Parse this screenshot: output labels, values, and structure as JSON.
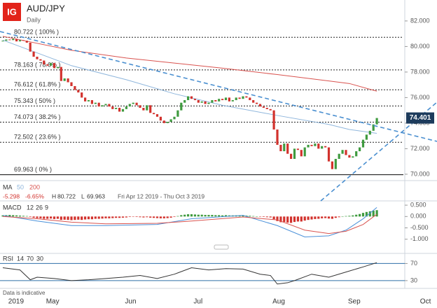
{
  "header": {
    "logo": "IG",
    "symbol": "AUD/JPY",
    "interval": "Daily"
  },
  "chart_data": {
    "type": "candlestick",
    "categories": [
      null,
      null,
      "2019",
      null,
      null,
      null,
      null,
      null,
      null,
      null,
      null,
      null,
      null,
      "May",
      null,
      null,
      null,
      null,
      null,
      null,
      null,
      null,
      null,
      null,
      null,
      null,
      null,
      null,
      null,
      null,
      null,
      null,
      null,
      null,
      null,
      null,
      "Jun",
      null,
      null,
      null,
      null,
      null,
      null,
      null,
      null,
      null,
      null,
      null,
      null,
      null,
      null,
      null,
      null,
      null,
      null,
      null,
      "Jul",
      null,
      null,
      null,
      null,
      null,
      null,
      null,
      null,
      null,
      null,
      null,
      null,
      null,
      null,
      null,
      null,
      null,
      null,
      null,
      null,
      null,
      null,
      "Aug",
      null,
      null,
      null,
      null,
      null,
      null,
      null,
      null,
      null,
      null,
      null,
      null,
      null,
      null,
      null,
      null,
      null,
      null,
      null,
      null,
      null,
      "Sep",
      null,
      null,
      null,
      null,
      null,
      null,
      null,
      null,
      null,
      null,
      null,
      null,
      null,
      null,
      null,
      null,
      null,
      null,
      null,
      null,
      "Oct"
    ],
    "closes": [
      80.45,
      80.55,
      80.5,
      80.6,
      80.4,
      80.5,
      80.45,
      80.3,
      79.6,
      79.2,
      79.0,
      78.9,
      78.6,
      78.5,
      78.7,
      78.3,
      78.4,
      77.3,
      77.5,
      77.2,
      76.9,
      76.6,
      76.4,
      76.0,
      75.7,
      75.8,
      75.5,
      75.6,
      75.3,
      75.4,
      75.5,
      75.3,
      75.1,
      75.2,
      74.9,
      75.1,
      75.3,
      75.5,
      75.6,
      75.4,
      75.2,
      75.0,
      75.4,
      74.8,
      74.7,
      74.5,
      74.2,
      74.0,
      74.1,
      74.3,
      74.5,
      75.0,
      75.6,
      75.8,
      76.1,
      75.9,
      75.8,
      75.6,
      75.7,
      75.5,
      75.6,
      75.8,
      75.7,
      75.9,
      75.8,
      76.0,
      75.7,
      75.8,
      76.0,
      75.9,
      76.1,
      76.0,
      75.8,
      75.6,
      75.5,
      75.3,
      75.2,
      75.1,
      75.0,
      73.5,
      72.3,
      71.8,
      72.4,
      71.6,
      71.2,
      72.0,
      71.9,
      71.4,
      72.1,
      72.3,
      72.2,
      72.4,
      72.0,
      72.2,
      72.1,
      71.0,
      70.4,
      71.2,
      71.6,
      71.9,
      71.5,
      71.3,
      71.4,
      71.8,
      72.1,
      72.7,
      73.1,
      73.4,
      73.9,
      74.4,
      null,
      null,
      null,
      null,
      null,
      null,
      null,
      null,
      null,
      null,
      null,
      null,
      null
    ],
    "up_color": "#3f9b3f",
    "down_color": "#d2322d",
    "ylim": [
      69.5,
      83.64
    ],
    "yticks": [
      {
        "value": 70,
        "label": "70.000"
      },
      {
        "value": 72,
        "label": "72.000"
      },
      {
        "value": 74,
        "label": "74.000"
      },
      {
        "value": 76,
        "label": "76.000"
      },
      {
        "value": 78,
        "label": "78.000"
      },
      {
        "value": 80,
        "label": "80.000"
      },
      {
        "value": 82,
        "label": "82.000"
      }
    ],
    "last_price": 74.401,
    "fib_levels": [
      {
        "value": 80.722,
        "label": "80.722 ( 100% )"
      },
      {
        "value": 78.163,
        "label": "78.163 ( 78.6% )"
      },
      {
        "value": 76.612,
        "label": "76.612 ( 61.8% )"
      },
      {
        "value": 75.343,
        "label": "75.343 ( 50% )"
      },
      {
        "value": 74.073,
        "label": "74.073 ( 38.2% )"
      },
      {
        "value": 72.502,
        "label": "72.502 ( 23.6% )"
      },
      {
        "value": 69.963,
        "label": "69.963 ( 0% )"
      }
    ],
    "ma": {
      "label": "MA",
      "series": [
        {
          "name": "50",
          "color": "#8fb6dc",
          "x": [
            0,
            20,
            36,
            50,
            64,
            80,
            95,
            101,
            109
          ],
          "values": [
            80.5,
            78.5,
            77.4,
            76.3,
            75.4,
            74.6,
            73.9,
            73.5,
            73.2
          ]
        },
        {
          "name": "200",
          "color": "#d9534f",
          "x": [
            0,
            20,
            36,
            50,
            64,
            80,
            95,
            101,
            109
          ],
          "values": [
            80.8,
            79.7,
            79.1,
            78.7,
            78.3,
            77.8,
            77.3,
            77.1,
            76.5
          ]
        }
      ]
    },
    "info": {
      "change": "-5.298",
      "change_pct": "-6.65%",
      "high_label": "H",
      "high": "80.722",
      "low_label": "L",
      "low": "69.963",
      "range": "Fri Apr 12 2019 - Thu Oct 3 2019"
    },
    "macd": {
      "label": "MACD",
      "params": [
        12,
        26,
        9
      ],
      "histogram": [
        0.05,
        0.06,
        0.07,
        0.06,
        0.05,
        0.04,
        0.03,
        0.02,
        -0.02,
        -0.05,
        -0.07,
        -0.08,
        -0.1,
        -0.1,
        -0.09,
        -0.11,
        -0.1,
        -0.15,
        -0.14,
        -0.15,
        -0.16,
        -0.15,
        -0.14,
        -0.15,
        -0.13,
        -0.12,
        -0.12,
        -0.1,
        -0.1,
        -0.09,
        -0.08,
        -0.08,
        -0.07,
        -0.06,
        -0.06,
        -0.05,
        -0.04,
        -0.02,
        -0.01,
        -0.02,
        -0.03,
        -0.04,
        -0.03,
        -0.05,
        -0.06,
        -0.07,
        -0.08,
        -0.08,
        -0.07,
        -0.05,
        -0.02,
        0.02,
        0.06,
        0.08,
        0.1,
        0.1,
        0.09,
        0.08,
        0.08,
        0.07,
        0.07,
        0.07,
        0.06,
        0.06,
        0.05,
        0.06,
        0.05,
        0.05,
        0.05,
        0.04,
        0.05,
        0.04,
        0.03,
        0.02,
        0.01,
        -0.01,
        -0.02,
        -0.03,
        -0.04,
        -0.12,
        -0.2,
        -0.25,
        -0.24,
        -0.27,
        -0.28,
        -0.24,
        -0.22,
        -0.22,
        -0.18,
        -0.15,
        -0.13,
        -0.11,
        -0.1,
        -0.08,
        -0.07,
        -0.09,
        -0.1,
        -0.06,
        -0.03,
        0.0,
        0.02,
        0.03,
        0.05,
        0.08,
        0.11,
        0.16,
        0.2,
        0.23,
        0.26,
        0.28,
        null,
        null,
        null,
        null,
        null,
        null,
        null,
        null,
        null,
        null,
        null,
        null,
        null
      ],
      "up_color": "#3f9b3f",
      "down_color": "#d2322d",
      "lines": [
        {
          "color": "#4a90d9",
          "x": [
            0,
            10,
            20,
            30,
            45,
            55,
            70,
            80,
            88,
            95,
            100,
            105,
            109
          ],
          "values": [
            0.05,
            -0.2,
            -0.4,
            -0.4,
            -0.35,
            -0.1,
            0.05,
            -0.4,
            -0.9,
            -0.85,
            -0.6,
            -0.1,
            0.4
          ]
        },
        {
          "color": "#d9534f",
          "x": [
            0,
            10,
            20,
            30,
            45,
            55,
            70,
            80,
            88,
            95,
            100,
            105,
            109
          ],
          "values": [
            0.0,
            -0.1,
            -0.25,
            -0.32,
            -0.3,
            -0.2,
            -0.02,
            -0.15,
            -0.6,
            -0.75,
            -0.65,
            -0.35,
            0.1
          ]
        }
      ],
      "ylim": [
        -1.5625,
        0.6875
      ],
      "yticks": [
        {
          "value": 0.5,
          "label": "0.500"
        },
        {
          "value": 0,
          "label": "0.000"
        },
        {
          "value": -0.5,
          "label": "-0.500"
        },
        {
          "value": -1,
          "label": "-1.000"
        }
      ]
    },
    "rsi": {
      "label": "RSI",
      "params": [
        14,
        70,
        30
      ],
      "color": "#333333",
      "level_color": "#2f6fa8",
      "x": [
        0,
        5,
        8,
        10,
        15,
        20,
        25,
        30,
        35,
        40,
        45,
        50,
        55,
        60,
        65,
        70,
        75,
        78,
        80,
        83,
        85,
        90,
        95,
        100,
        105,
        109
      ],
      "values": [
        60,
        55,
        32,
        38,
        35,
        30,
        32,
        35,
        38,
        42,
        35,
        45,
        60,
        55,
        58,
        57,
        45,
        42,
        22,
        25,
        30,
        45,
        38,
        50,
        62,
        72
      ],
      "ylim": [
        11.8,
        93.6
      ],
      "yticks": [
        30,
        70
      ]
    }
  },
  "footer": "Data is indicative"
}
